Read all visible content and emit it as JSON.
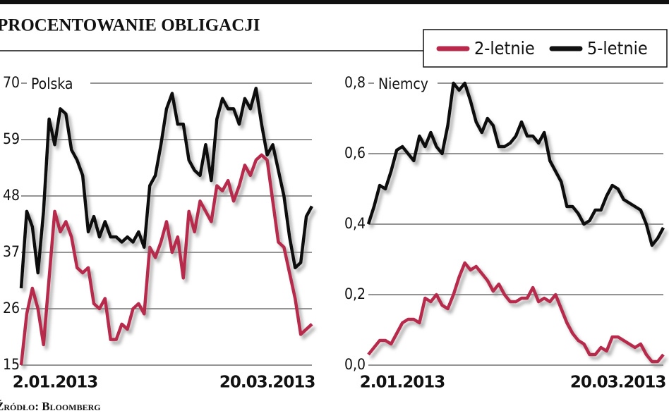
{
  "title": "PROCENTOWANIE OBLIGACJI",
  "source": "Źródło: Bloomberg",
  "chart_data": [
    {
      "type": "line",
      "title": "Polska",
      "categories": [
        "2.01.2013",
        null,
        null,
        null,
        null,
        null,
        null,
        null,
        null,
        null,
        null,
        null,
        null,
        null,
        null,
        null,
        null,
        null,
        null,
        null,
        null,
        null,
        null,
        null,
        null,
        null,
        null,
        null,
        null,
        null,
        null,
        null,
        null,
        null,
        null,
        null,
        null,
        null,
        null,
        null,
        null,
        null,
        null,
        null,
        "20.03.2013",
        null,
        null,
        null,
        null,
        null,
        null,
        null,
        null
      ],
      "ylim": [
        15,
        70
      ],
      "yticks": [
        15,
        26,
        37,
        48,
        59,
        70
      ],
      "grid": true,
      "series": [
        {
          "name": "2-letnie",
          "color": "#b8294b",
          "values": [
            15,
            25,
            30,
            26,
            19,
            32,
            45,
            41,
            43,
            40,
            34,
            33,
            34,
            27,
            26,
            28,
            20,
            20,
            23,
            22,
            26,
            27,
            25,
            38,
            36,
            39,
            43,
            37,
            40,
            32,
            45,
            41,
            47,
            45,
            43,
            50,
            49,
            51,
            47,
            50,
            54,
            52,
            55,
            56,
            55,
            47,
            39,
            38,
            33,
            28,
            21,
            22,
            23
          ]
        },
        {
          "name": "5-letnie",
          "color": "#111111",
          "values": [
            30,
            45,
            42,
            33,
            45,
            63,
            58,
            65,
            64,
            57,
            55,
            52,
            41,
            44,
            40,
            43,
            40,
            40,
            39,
            40,
            39,
            41,
            38,
            50,
            52,
            58,
            65,
            68,
            62,
            62,
            55,
            53,
            52,
            58,
            51,
            63,
            67,
            65,
            65,
            62,
            67,
            65,
            69,
            62,
            56,
            58,
            53,
            48,
            40,
            34,
            35,
            44,
            46
          ]
        }
      ]
    },
    {
      "type": "line",
      "title": "Niemcy",
      "categories": [
        "2.01.2013",
        null,
        null,
        null,
        null,
        null,
        null,
        null,
        null,
        null,
        null,
        null,
        null,
        null,
        null,
        null,
        null,
        null,
        null,
        null,
        null,
        null,
        null,
        null,
        null,
        null,
        null,
        null,
        null,
        null,
        null,
        null,
        null,
        null,
        null,
        null,
        null,
        null,
        null,
        null,
        null,
        null,
        null,
        null,
        "20.03.2013",
        null,
        null,
        null,
        null,
        null,
        null,
        null,
        null
      ],
      "ylim": [
        0,
        0.8
      ],
      "yticks": [
        {
          "value": 0,
          "label": "0,0"
        },
        {
          "value": 0.2,
          "label": "0,2"
        },
        {
          "value": 0.4,
          "label": "0,4"
        },
        {
          "value": 0.6,
          "label": "0,6"
        },
        {
          "value": 0.8,
          "label": "0,8"
        }
      ],
      "grid": true,
      "series": [
        {
          "color": "#b8294b",
          "values": [
            0.03,
            0.05,
            0.07,
            0.07,
            0.06,
            0.09,
            0.12,
            0.13,
            0.13,
            0.12,
            0.19,
            0.18,
            0.2,
            0.17,
            0.16,
            0.2,
            0.25,
            0.29,
            0.27,
            0.28,
            0.26,
            0.24,
            0.21,
            0.23,
            0.2,
            0.18,
            0.18,
            0.19,
            0.19,
            0.22,
            0.18,
            0.19,
            0.18,
            0.2,
            0.16,
            0.12,
            0.09,
            0.07,
            0.06,
            0.03,
            0.03,
            0.05,
            0.04,
            0.08,
            0.08,
            0.07,
            0.06,
            0.05,
            0.06,
            0.03,
            0.01,
            0.01,
            0.03
          ]
        },
        {
          "color": "#111111",
          "values": [
            0.4,
            0.45,
            0.51,
            0.5,
            0.55,
            0.61,
            0.62,
            0.6,
            0.58,
            0.65,
            0.62,
            0.66,
            0.62,
            0.6,
            0.68,
            0.8,
            0.78,
            0.8,
            0.75,
            0.69,
            0.66,
            0.7,
            0.68,
            0.62,
            0.62,
            0.63,
            0.65,
            0.69,
            0.65,
            0.65,
            0.63,
            0.66,
            0.58,
            0.55,
            0.52,
            0.45,
            0.45,
            0.43,
            0.4,
            0.41,
            0.44,
            0.44,
            0.48,
            0.51,
            0.5,
            0.47,
            0.46,
            0.45,
            0.44,
            0.4,
            0.34,
            0.36,
            0.39
          ]
        }
      ]
    }
  ]
}
